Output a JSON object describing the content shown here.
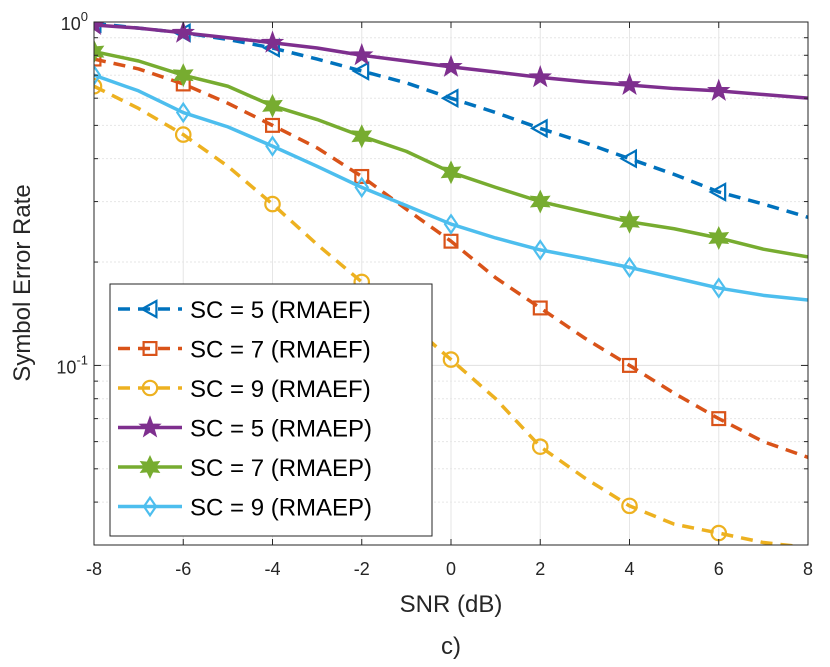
{
  "chart_data": {
    "type": "line",
    "title": "",
    "xlabel": "SNR (dB)",
    "ylabel": "Symbol Error Rate",
    "caption": "c)",
    "xlim": [
      -8,
      8
    ],
    "ylim": [
      0.03,
      1.0
    ],
    "yscale": "log",
    "grid": true,
    "legend_position": "bottom-left",
    "x_ticks": [
      -8,
      -6,
      -4,
      -2,
      0,
      2,
      4,
      6,
      8
    ],
    "x_tick_labels": [
      "-8",
      "-6",
      "-4",
      "-2",
      "0",
      "2",
      "4",
      "6",
      "8"
    ],
    "y_ticks": [
      {
        "value": 1.0,
        "base": "10",
        "exp": "0"
      },
      {
        "value": 0.1,
        "base": "10",
        "exp": "-1"
      }
    ],
    "marker_x": [
      -8,
      -6,
      -4,
      -2,
      0,
      2,
      4,
      6
    ],
    "series": [
      {
        "name": "SC = 5 (RMAEF)",
        "color": "#0072BD",
        "dash": "dashed",
        "marker": "triangle-left",
        "x": [
          -8,
          -7,
          -6,
          -5,
          -4,
          -3,
          -2,
          -1,
          0,
          1,
          2,
          3,
          4,
          5,
          6,
          7,
          8
        ],
        "values": [
          0.99,
          0.96,
          0.93,
          0.89,
          0.84,
          0.78,
          0.72,
          0.665,
          0.6,
          0.545,
          0.49,
          0.445,
          0.4,
          0.36,
          0.32,
          0.295,
          0.27
        ]
      },
      {
        "name": "SC = 7 (RMAEF)",
        "color": "#D95319",
        "dash": "dashed",
        "marker": "square",
        "x": [
          -8,
          -7,
          -6,
          -5,
          -4,
          -3,
          -2,
          -1,
          0,
          1,
          2,
          3,
          4,
          5,
          6,
          7,
          8
        ],
        "values": [
          0.78,
          0.73,
          0.66,
          0.58,
          0.5,
          0.43,
          0.355,
          0.285,
          0.23,
          0.18,
          0.147,
          0.12,
          0.1,
          0.083,
          0.07,
          0.06,
          0.054
        ]
      },
      {
        "name": "SC = 9 (RMAEF)",
        "color": "#EDB120",
        "dash": "dashed",
        "marker": "circle",
        "x": [
          -8,
          -7,
          -6,
          -5,
          -4,
          -3,
          -2,
          -1,
          0,
          1,
          2,
          3,
          4,
          5,
          6,
          7,
          8
        ],
        "values": [
          0.65,
          0.56,
          0.47,
          0.38,
          0.295,
          0.225,
          0.175,
          0.135,
          0.104,
          0.08,
          0.058,
          0.047,
          0.039,
          0.0345,
          0.0325,
          0.0305,
          0.0295
        ]
      },
      {
        "name": "SC = 5 (RMAEP)",
        "color": "#7E2F8E",
        "dash": "solid",
        "marker": "star",
        "x": [
          -8,
          -7,
          -6,
          -5,
          -4,
          -3,
          -2,
          -1,
          0,
          1,
          2,
          3,
          4,
          5,
          6,
          7,
          8
        ],
        "values": [
          0.98,
          0.96,
          0.93,
          0.9,
          0.87,
          0.84,
          0.8,
          0.77,
          0.74,
          0.715,
          0.69,
          0.67,
          0.655,
          0.64,
          0.63,
          0.615,
          0.6
        ]
      },
      {
        "name": "SC = 7 (RMAEP)",
        "color": "#77AC30",
        "dash": "solid",
        "marker": "hexagram",
        "x": [
          -8,
          -7,
          -6,
          -5,
          -4,
          -3,
          -2,
          -1,
          0,
          1,
          2,
          3,
          4,
          5,
          6,
          7,
          8
        ],
        "values": [
          0.82,
          0.77,
          0.7,
          0.65,
          0.57,
          0.52,
          0.465,
          0.42,
          0.365,
          0.33,
          0.3,
          0.28,
          0.262,
          0.25,
          0.235,
          0.218,
          0.207
        ]
      },
      {
        "name": "SC = 9 (RMAEP)",
        "color": "#4DBEEE",
        "dash": "solid",
        "marker": "diamond",
        "x": [
          -8,
          -7,
          -6,
          -5,
          -4,
          -3,
          -2,
          -1,
          0,
          1,
          2,
          3,
          4,
          5,
          6,
          7,
          8
        ],
        "values": [
          0.7,
          0.63,
          0.545,
          0.495,
          0.435,
          0.38,
          0.33,
          0.292,
          0.258,
          0.235,
          0.217,
          0.205,
          0.193,
          0.18,
          0.168,
          0.16,
          0.155
        ]
      }
    ]
  }
}
